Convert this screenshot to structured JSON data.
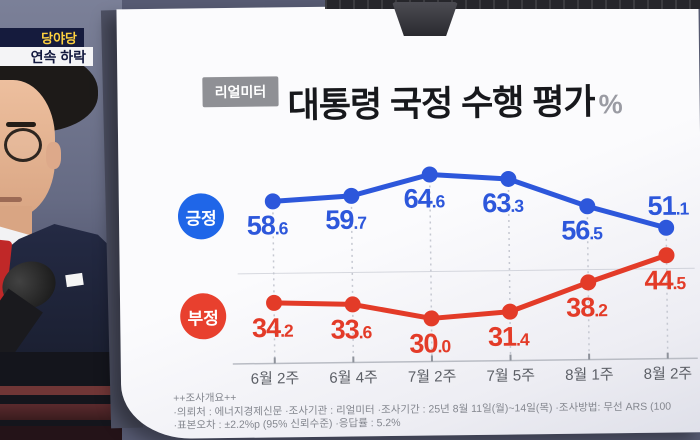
{
  "overlay": {
    "top_badge": "당야당",
    "bottom_badge": "연속 하락"
  },
  "panel": {
    "source_badge": "리얼미터",
    "title": "대통령 국정 수행 평가",
    "unit": "%"
  },
  "chart_data": {
    "type": "line",
    "title": "대통령 국정 수행 평가",
    "unit": "%",
    "categories": [
      "6월 2주",
      "6월 4주",
      "7월 2주",
      "7월 5주",
      "8월 1주",
      "8월 2주"
    ],
    "series": [
      {
        "name": "긍정",
        "color": "#2d57db",
        "values": [
          58.6,
          59.7,
          64.6,
          63.3,
          56.5,
          51.1
        ]
      },
      {
        "name": "부정",
        "color": "#e33b28",
        "values": [
          34.2,
          33.6,
          30.0,
          31.4,
          38.2,
          44.5
        ]
      }
    ],
    "ylim": [
      20,
      68
    ],
    "grid": "dashed-vertical-per-category",
    "legend_position": "left"
  },
  "survey_notes": {
    "header": "++조사개요++",
    "line1": "·의뢰처 : 에너지경제신문 ·조사기관 : 리얼미터 ·조사기간 : 25년 8월 11일(월)~14일(목) ·조사방법: 무선 ARS (100",
    "line2": "·표본오차 : ±2.2%p (95% 신뢰수준) ·응답률 : 5.2%"
  },
  "colors": {
    "positive": "#2d57db",
    "negative": "#e33b28",
    "card": "#f6f7fa",
    "background": "#575b73",
    "axis_label": "#5c5f66"
  }
}
